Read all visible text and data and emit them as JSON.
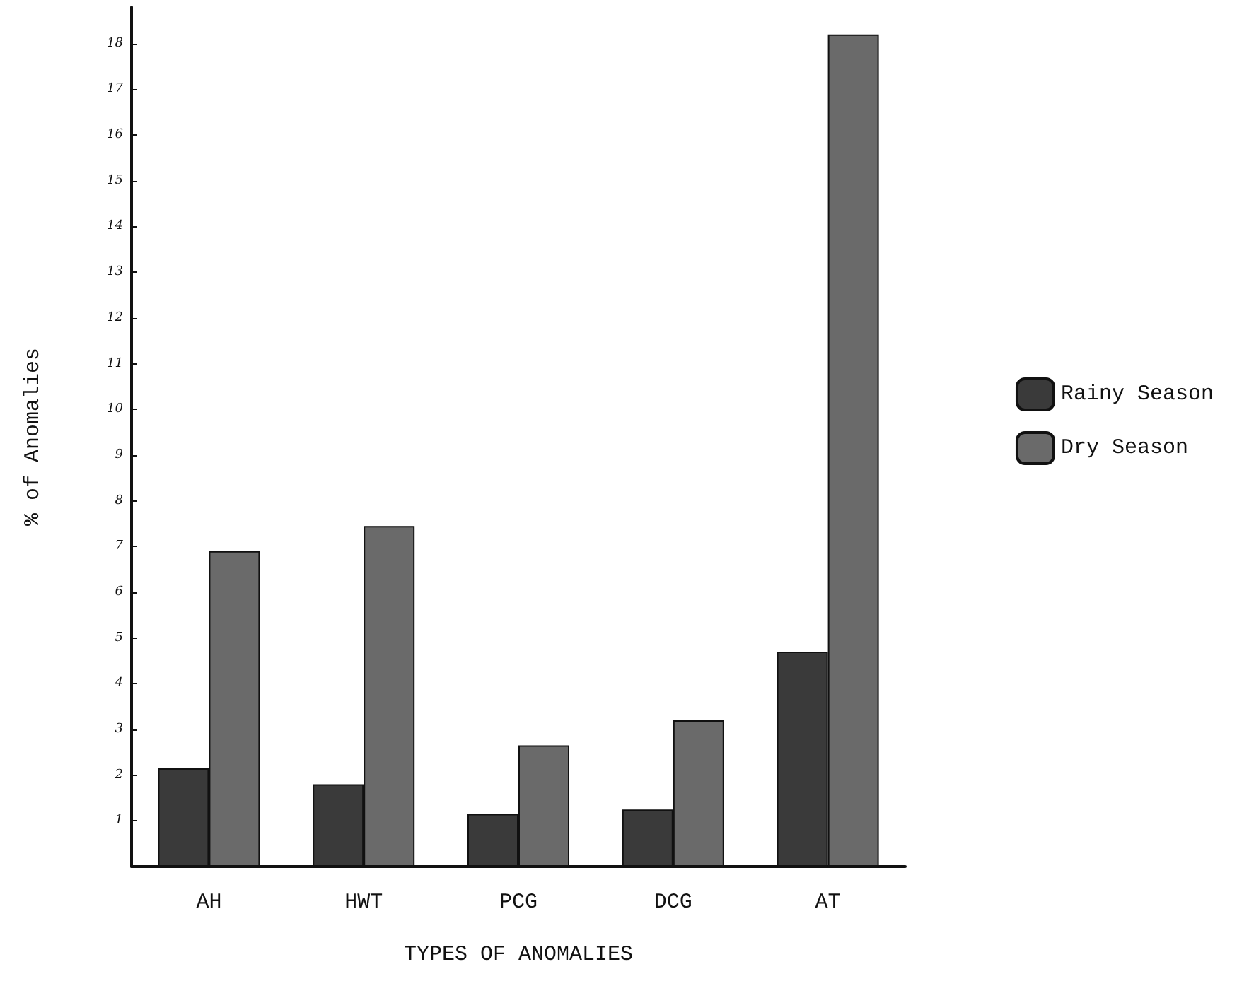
{
  "chart_data": {
    "type": "bar",
    "xlabel": "TYPES OF ANOMALIES",
    "ylabel": "% of Anomalies",
    "categories": [
      "AH",
      "HWT",
      "PCG",
      "DCG",
      "AT"
    ],
    "series": [
      {
        "name": "Rainy Season",
        "color": "#3a3a3a",
        "values": [
          2.15,
          1.8,
          1.15,
          1.25,
          4.7
        ]
      },
      {
        "name": "Dry Season",
        "color": "#6a6a6a",
        "values": [
          6.9,
          7.45,
          2.65,
          3.2,
          18.2
        ]
      }
    ],
    "ylim": [
      0,
      18.8
    ],
    "yticks": [
      1,
      2,
      3,
      4,
      5,
      6,
      7,
      8,
      9,
      10,
      11,
      12,
      13,
      14,
      15,
      16,
      17,
      18
    ],
    "grid": false,
    "legend": "right"
  }
}
